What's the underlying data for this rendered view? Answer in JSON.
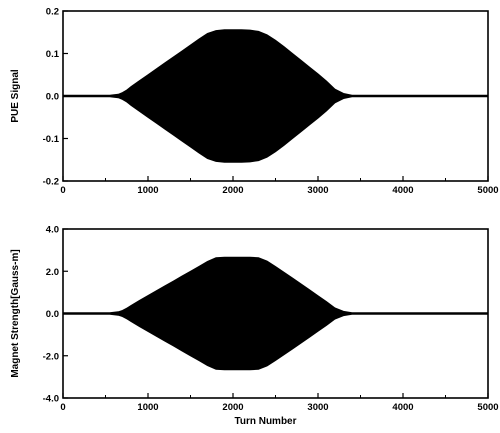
{
  "chart_data": [
    {
      "type": "area",
      "title": "",
      "xlabel": "",
      "ylabel": "PUE Signal",
      "xlim": [
        0,
        5000
      ],
      "ylim": [
        -0.2,
        0.2
      ],
      "grid": false,
      "x_ticks": [
        "0",
        "1000",
        "2000",
        "3000",
        "4000",
        "5000"
      ],
      "y_ticks": [
        "-0.2",
        "-0.1",
        "0.0",
        "0.1",
        "0.2"
      ],
      "series": [
        {
          "fill": "#000000",
          "x": [
            0,
            550,
            650,
            700,
            750,
            800,
            900,
            1000,
            1100,
            1200,
            1300,
            1400,
            1500,
            1600,
            1700,
            1800,
            1900,
            2000,
            2100,
            2200,
            2300,
            2400,
            2500,
            2600,
            2700,
            2800,
            2900,
            3000,
            3100,
            3200,
            3300,
            3400,
            3500,
            5000
          ],
          "upper": [
            0.002,
            0.002,
            0.004,
            0.008,
            0.014,
            0.022,
            0.036,
            0.05,
            0.064,
            0.078,
            0.092,
            0.106,
            0.12,
            0.134,
            0.147,
            0.154,
            0.156,
            0.156,
            0.156,
            0.155,
            0.152,
            0.144,
            0.131,
            0.116,
            0.1,
            0.084,
            0.068,
            0.052,
            0.035,
            0.016,
            0.006,
            0.002,
            0.002,
            0.002
          ],
          "lower": [
            -0.002,
            -0.002,
            -0.004,
            -0.008,
            -0.014,
            -0.022,
            -0.036,
            -0.05,
            -0.064,
            -0.078,
            -0.092,
            -0.106,
            -0.12,
            -0.134,
            -0.147,
            -0.154,
            -0.156,
            -0.156,
            -0.156,
            -0.155,
            -0.152,
            -0.144,
            -0.131,
            -0.116,
            -0.1,
            -0.084,
            -0.068,
            -0.052,
            -0.035,
            -0.016,
            -0.006,
            -0.002,
            -0.002,
            -0.002
          ]
        }
      ]
    },
    {
      "type": "area",
      "title": "",
      "xlabel": "Turn Number",
      "ylabel": "Magnet Strength[Gauss-m]",
      "xlim": [
        0,
        5000
      ],
      "ylim": [
        -4.0,
        4.0
      ],
      "grid": false,
      "x_ticks": [
        "0",
        "1000",
        "2000",
        "3000",
        "4000",
        "5000"
      ],
      "y_ticks": [
        "-4.0",
        "-2.0",
        "0.0",
        "2.0",
        "4.0"
      ],
      "series": [
        {
          "fill": "#000000",
          "x": [
            0,
            550,
            650,
            700,
            750,
            800,
            900,
            1000,
            1100,
            1200,
            1300,
            1400,
            1500,
            1600,
            1700,
            1800,
            1900,
            2000,
            2100,
            2200,
            2300,
            2400,
            2500,
            2600,
            2700,
            2800,
            2900,
            3000,
            3100,
            3200,
            3300,
            3400,
            3500,
            5000
          ],
          "upper": [
            0.04,
            0.04,
            0.08,
            0.14,
            0.25,
            0.38,
            0.62,
            0.85,
            1.08,
            1.31,
            1.54,
            1.77,
            2.0,
            2.23,
            2.46,
            2.64,
            2.66,
            2.66,
            2.66,
            2.66,
            2.64,
            2.48,
            2.22,
            1.95,
            1.68,
            1.4,
            1.12,
            0.84,
            0.56,
            0.26,
            0.1,
            0.04,
            0.04,
            0.04
          ],
          "lower": [
            -0.04,
            -0.04,
            -0.08,
            -0.14,
            -0.25,
            -0.38,
            -0.62,
            -0.85,
            -1.08,
            -1.31,
            -1.54,
            -1.77,
            -2.0,
            -2.23,
            -2.46,
            -2.64,
            -2.66,
            -2.66,
            -2.66,
            -2.66,
            -2.64,
            -2.48,
            -2.22,
            -1.95,
            -1.68,
            -1.4,
            -1.12,
            -0.84,
            -0.56,
            -0.26,
            -0.1,
            -0.04,
            -0.04,
            -0.04
          ]
        }
      ]
    }
  ]
}
